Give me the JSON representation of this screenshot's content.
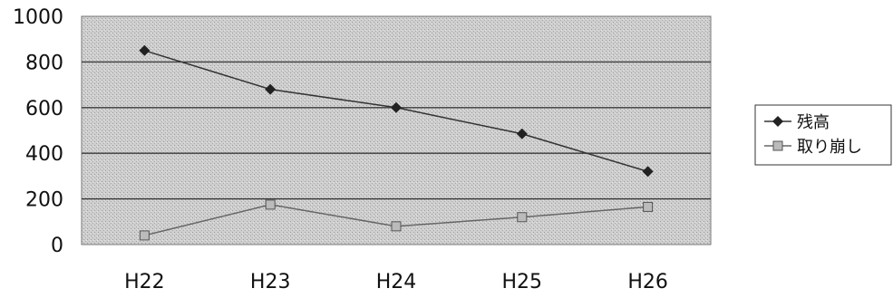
{
  "chart_data": {
    "type": "line",
    "title": "",
    "xlabel": "",
    "ylabel": "",
    "categories": [
      "H22",
      "H23",
      "H24",
      "H25",
      "H26"
    ],
    "ylim": [
      0,
      1000
    ],
    "yticks": [
      "1000",
      "800",
      "600",
      "400",
      "200",
      "0"
    ],
    "grid": true,
    "legend_position": "right",
    "series": [
      {
        "name": "残高",
        "values": [
          850,
          680,
          600,
          485,
          320
        ],
        "marker": "diamond-icon",
        "color": "#333333"
      },
      {
        "name": "取り崩し",
        "values": [
          40,
          175,
          80,
          120,
          165
        ],
        "marker": "square-icon",
        "color": "#666666"
      }
    ],
    "plot_background": "#cfcfcf"
  }
}
